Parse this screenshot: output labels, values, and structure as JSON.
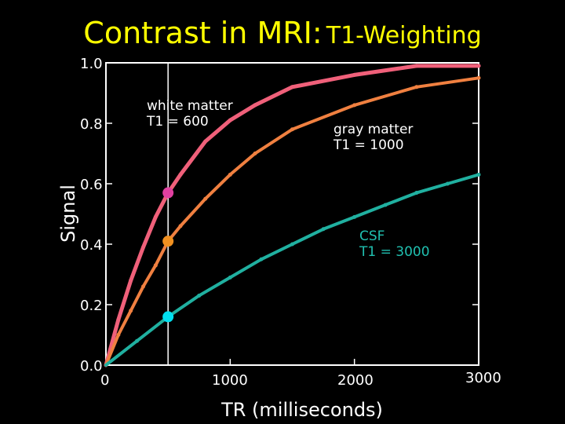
{
  "title": {
    "main": "Contrast in MRI:",
    "sub": "T1-Weighting"
  },
  "colors": {
    "background": "#000000",
    "title": "#ffff00",
    "white_matter": "#f0607a",
    "gray_matter": "#f08040",
    "csf": "#20b0a0",
    "csf_marker": "#00e0f0",
    "white_matter_marker": "#e040a0",
    "gray_matter_marker": "#f09020"
  },
  "chart_data": {
    "type": "line",
    "xlabel": "TR (milliseconds)",
    "ylabel": "Signal",
    "xlim": [
      0,
      3000
    ],
    "ylim": [
      0,
      1.0
    ],
    "x_ticks": [
      "0",
      "1000",
      "2000",
      "3000"
    ],
    "y_ticks": [
      "0.0",
      "0.2",
      "0.4",
      "0.6",
      "0.8",
      "1.0"
    ],
    "grid": false,
    "marked_tr": 500,
    "series": [
      {
        "key": "white_matter",
        "t1": 600,
        "color": "#f0607a",
        "marker_color": "#e040a0",
        "label_lines": [
          "white matter",
          "T1 = 600"
        ],
        "marker_value": 0.57,
        "x": [
          0,
          100,
          200,
          300,
          400,
          500,
          600,
          800,
          1000,
          1200,
          1500,
          2000,
          2500,
          3000
        ],
        "values": [
          0.0,
          0.15,
          0.28,
          0.39,
          0.49,
          0.57,
          0.63,
          0.74,
          0.81,
          0.86,
          0.92,
          0.96,
          0.99,
          0.99
        ]
      },
      {
        "key": "gray_matter",
        "t1": 1000,
        "color": "#f08040",
        "marker_color": "#f09020",
        "label_lines": [
          "gray matter",
          "T1 = 1000"
        ],
        "marker_value": 0.41,
        "x": [
          0,
          100,
          200,
          300,
          400,
          500,
          600,
          800,
          1000,
          1200,
          1500,
          2000,
          2500,
          3000
        ],
        "values": [
          0.0,
          0.1,
          0.18,
          0.26,
          0.33,
          0.41,
          0.46,
          0.55,
          0.63,
          0.7,
          0.78,
          0.86,
          0.92,
          0.95
        ]
      },
      {
        "key": "csf",
        "t1": 3000,
        "color": "#20b0a0",
        "marker_color": "#00e0f0",
        "label_lines": [
          "CSF",
          "T1 = 3000"
        ],
        "marker_value": 0.16,
        "x": [
          0,
          250,
          500,
          750,
          1000,
          1250,
          1500,
          1750,
          2000,
          2250,
          2500,
          2750,
          3000
        ],
        "values": [
          0.0,
          0.08,
          0.16,
          0.23,
          0.29,
          0.35,
          0.4,
          0.45,
          0.49,
          0.53,
          0.57,
          0.6,
          0.63
        ]
      }
    ]
  }
}
